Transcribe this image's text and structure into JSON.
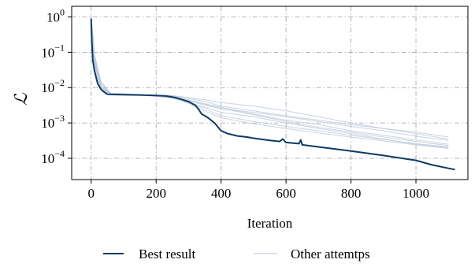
{
  "chart_data": {
    "type": "line",
    "title": "",
    "xlabel": "Iteration",
    "ylabel": "ℒ",
    "xlim": [
      -60,
      1160
    ],
    "ylim": [
      2.5e-05,
      2.0
    ],
    "yscale": "log",
    "grid": true,
    "legend_placement": "bottom-center",
    "x_ticks": [
      0,
      200,
      400,
      600,
      800,
      1000
    ],
    "y_ticks": [
      {
        "value": 1,
        "base": "10",
        "exp": "0"
      },
      {
        "value": 0.1,
        "base": "10",
        "exp": "−1"
      },
      {
        "value": 0.01,
        "base": "10",
        "exp": "−2"
      },
      {
        "value": 0.001,
        "base": "10",
        "exp": "−3"
      },
      {
        "value": 0.0001,
        "base": "10",
        "exp": "−4"
      }
    ],
    "colors": {
      "best": "#0d3b66",
      "other": "#b8c6d9",
      "grid": "#a0a0a0"
    },
    "series": [
      {
        "name": "Best result",
        "role": "best",
        "x": [
          0,
          2,
          5,
          10,
          15,
          20,
          30,
          40,
          50,
          60,
          100,
          150,
          200,
          230,
          260,
          280,
          300,
          320,
          330,
          340,
          350,
          360,
          380,
          400,
          420,
          450,
          480,
          500,
          550,
          580,
          590,
          600,
          640,
          645,
          650,
          700,
          800,
          900,
          1000,
          1050,
          1100,
          1120
        ],
        "y": [
          0.9,
          0.2,
          0.06,
          0.03,
          0.02,
          0.013,
          0.009,
          0.0075,
          0.0065,
          0.0064,
          0.0063,
          0.0062,
          0.006,
          0.0058,
          0.0052,
          0.0046,
          0.004,
          0.0032,
          0.0025,
          0.0018,
          0.0016,
          0.0014,
          0.001,
          0.0006,
          0.0005,
          0.00043,
          0.0004,
          0.00037,
          0.00032,
          0.0003,
          0.00035,
          0.00028,
          0.00026,
          0.00033,
          0.00024,
          0.00021,
          0.00016,
          0.00012,
          8.75e-05,
          6.5e-05,
          5.2e-05,
          4.8e-05
        ]
      },
      {
        "name": "",
        "role": "other",
        "x": [
          0,
          10,
          30,
          60,
          150,
          250,
          300,
          350,
          400,
          500,
          600,
          700,
          800,
          900,
          1000,
          1100
        ],
        "y": [
          1.0,
          0.05,
          0.01,
          0.0065,
          0.0062,
          0.0055,
          0.0042,
          0.0032,
          0.0025,
          0.002,
          0.0015,
          0.0011,
          0.0008,
          0.0006,
          0.00042,
          0.00032
        ]
      },
      {
        "name": "",
        "role": "other",
        "x": [
          0,
          10,
          30,
          60,
          150,
          250,
          300,
          350,
          400,
          500,
          600,
          700,
          800,
          900,
          1000,
          1100
        ],
        "y": [
          0.8,
          0.06,
          0.012,
          0.007,
          0.0064,
          0.005,
          0.0038,
          0.0028,
          0.002,
          0.0015,
          0.001,
          0.0007,
          0.0005,
          0.00035,
          0.00025,
          0.0002
        ]
      },
      {
        "name": "",
        "role": "other",
        "x": [
          0,
          10,
          30,
          60,
          150,
          250,
          300,
          350,
          400,
          500,
          600,
          700,
          800,
          900,
          1000,
          1100
        ],
        "y": [
          0.7,
          0.08,
          0.015,
          0.0068,
          0.0063,
          0.006,
          0.005,
          0.004,
          0.003,
          0.0022,
          0.0016,
          0.0012,
          0.0009,
          0.0007,
          0.00055,
          0.0004
        ]
      },
      {
        "name": "",
        "role": "other",
        "x": [
          0,
          10,
          30,
          60,
          150,
          250,
          300,
          350,
          400,
          500,
          600,
          700,
          800,
          900,
          1000,
          1100
        ],
        "y": [
          1.1,
          0.04,
          0.009,
          0.0066,
          0.0062,
          0.0058,
          0.0045,
          0.0035,
          0.0028,
          0.0018,
          0.0012,
          0.0009,
          0.0006,
          0.00045,
          0.00033,
          0.00025
        ]
      },
      {
        "name": "",
        "role": "other",
        "x": [
          0,
          10,
          30,
          60,
          150,
          250,
          300,
          350,
          400,
          500,
          600,
          700,
          800,
          900,
          1000,
          1100
        ],
        "y": [
          0.9,
          0.07,
          0.011,
          0.0065,
          0.0061,
          0.0052,
          0.004,
          0.0025,
          0.0016,
          0.0011,
          0.0008,
          0.0006,
          0.00045,
          0.00034,
          0.00026,
          0.00021
        ]
      },
      {
        "name": "",
        "role": "other",
        "x": [
          0,
          10,
          30,
          60,
          150,
          250,
          300,
          350,
          400,
          500,
          600,
          700,
          800,
          900,
          1000,
          1100
        ],
        "y": [
          0.6,
          0.05,
          0.01,
          0.0066,
          0.0063,
          0.0059,
          0.0052,
          0.0045,
          0.0038,
          0.003,
          0.0022,
          0.0015,
          0.001,
          0.0007,
          0.0005,
          0.00035
        ]
      },
      {
        "name": "",
        "role": "other",
        "x": [
          0,
          10,
          30,
          60,
          150,
          250,
          300,
          350,
          400,
          500,
          600,
          700,
          800,
          900,
          1000,
          1100
        ],
        "y": [
          1.2,
          0.09,
          0.014,
          0.0067,
          0.0062,
          0.0056,
          0.0044,
          0.0034,
          0.0026,
          0.0017,
          0.0011,
          0.00075,
          0.00055,
          0.0004,
          0.0003,
          0.00023
        ]
      },
      {
        "name": "",
        "role": "other",
        "x": [
          0,
          10,
          30,
          60,
          150,
          250,
          300,
          350,
          400,
          500,
          600,
          700,
          800,
          900,
          1000,
          1100
        ],
        "y": [
          0.85,
          0.06,
          0.012,
          0.0066,
          0.0062,
          0.0054,
          0.0036,
          0.0022,
          0.0014,
          0.00095,
          0.0007,
          0.00052,
          0.0004,
          0.00031,
          0.00024,
          0.00019
        ]
      }
    ]
  },
  "legend": {
    "items": [
      {
        "label": "Best result",
        "role": "best"
      },
      {
        "label": "Other attemtps",
        "role": "other"
      }
    ]
  }
}
